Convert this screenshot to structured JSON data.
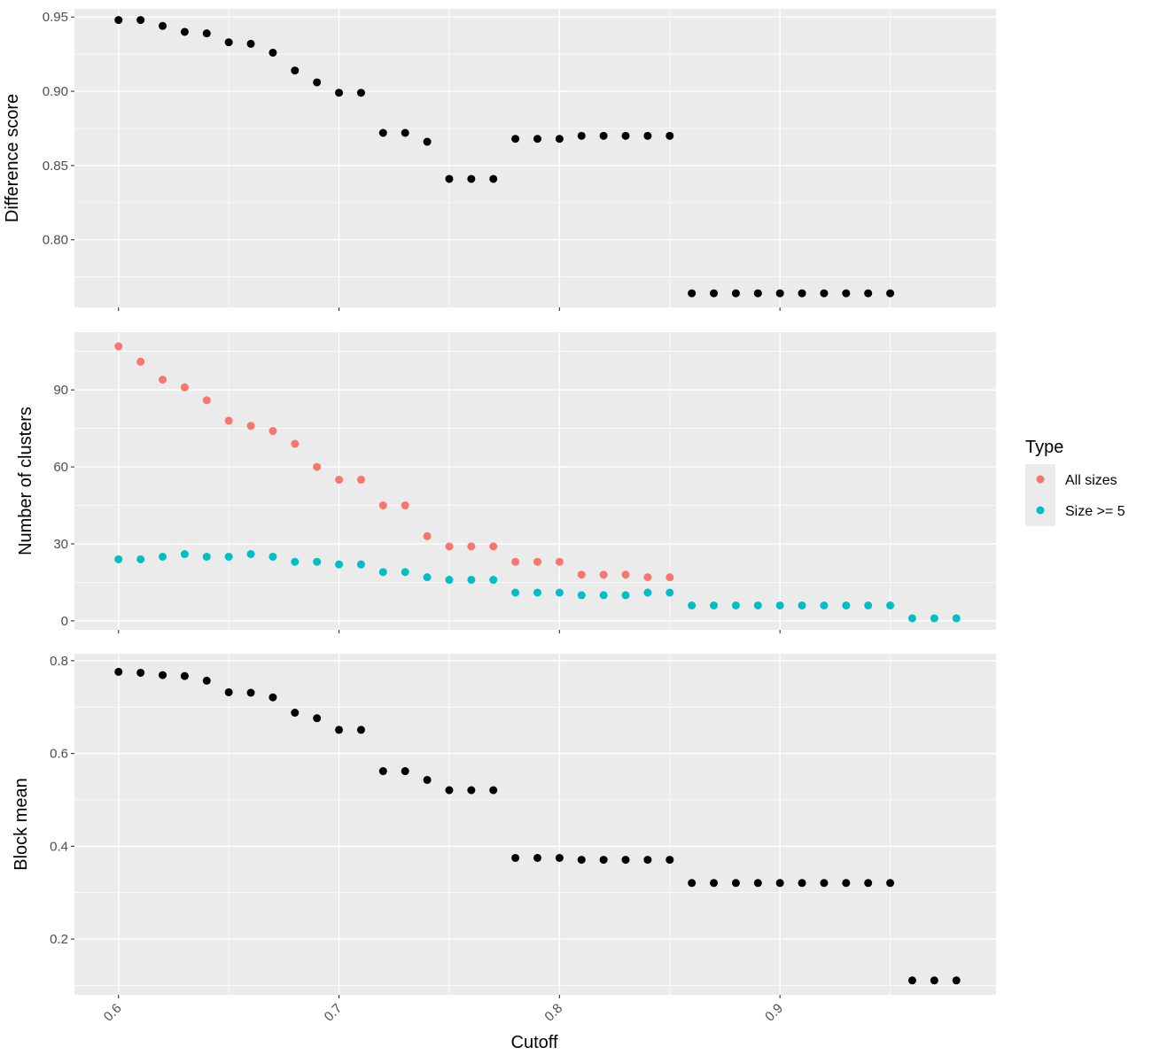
{
  "chart_data": {
    "type": "scatter",
    "xlabel": "Cutoff",
    "x_ticks": [
      "0.6",
      "0.7",
      "0.8",
      "0.9"
    ],
    "x_tick_values": [
      0.6,
      0.7,
      0.8,
      0.9
    ],
    "xlim": [
      0.58,
      0.998
    ],
    "grid": true,
    "legend": {
      "title": "Type",
      "placement": "right",
      "entries": [
        {
          "label": "All sizes",
          "color": "#F8766D"
        },
        {
          "label": "Size >= 5",
          "color": "#00BFC4"
        }
      ]
    },
    "panels": [
      {
        "ylabel": "Difference score",
        "ylim": [
          0.7545,
          0.9555
        ],
        "y_ticks": [
          "0.80",
          "0.85",
          "0.90",
          "0.95"
        ],
        "y_tick_values": [
          0.8,
          0.85,
          0.9,
          0.95
        ],
        "series": [
          {
            "color": "#000000",
            "x": [
              0.6,
              0.61,
              0.62,
              0.63,
              0.64,
              0.65,
              0.66,
              0.67,
              0.68,
              0.69,
              0.7,
              0.71,
              0.72,
              0.73,
              0.74,
              0.75,
              0.76,
              0.77,
              0.78,
              0.79,
              0.8,
              0.81,
              0.82,
              0.83,
              0.84,
              0.85,
              0.86,
              0.87,
              0.88,
              0.89,
              0.9,
              0.91,
              0.92,
              0.93,
              0.94,
              0.95
            ],
            "y": [
              0.948,
              0.948,
              0.944,
              0.94,
              0.939,
              0.933,
              0.932,
              0.926,
              0.914,
              0.906,
              0.899,
              0.899,
              0.872,
              0.872,
              0.866,
              0.841,
              0.841,
              0.841,
              0.868,
              0.868,
              0.868,
              0.87,
              0.87,
              0.87,
              0.87,
              0.87,
              0.764,
              0.764,
              0.764,
              0.764,
              0.764,
              0.764,
              0.764,
              0.764,
              0.764,
              0.764
            ]
          }
        ]
      },
      {
        "ylabel": "Number of clusters",
        "ylim": [
          -3.5,
          112.5
        ],
        "y_ticks": [
          "0",
          "30",
          "60",
          "90"
        ],
        "y_tick_values": [
          0,
          30,
          60,
          90
        ],
        "series": [
          {
            "name": "All sizes",
            "color": "#F8766D",
            "x": [
              0.6,
              0.61,
              0.62,
              0.63,
              0.64,
              0.65,
              0.66,
              0.67,
              0.68,
              0.69,
              0.7,
              0.71,
              0.72,
              0.73,
              0.74,
              0.75,
              0.76,
              0.77,
              0.78,
              0.79,
              0.8,
              0.81,
              0.82,
              0.83,
              0.84,
              0.85
            ],
            "y": [
              107,
              101,
              94,
              91,
              86,
              78,
              76,
              74,
              69,
              60,
              55,
              55,
              45,
              45,
              33,
              29,
              29,
              29,
              23,
              23,
              23,
              18,
              18,
              18,
              17,
              17
            ]
          },
          {
            "name": "Size >= 5",
            "color": "#00BFC4",
            "x": [
              0.6,
              0.61,
              0.62,
              0.63,
              0.64,
              0.65,
              0.66,
              0.67,
              0.68,
              0.69,
              0.7,
              0.71,
              0.72,
              0.73,
              0.74,
              0.75,
              0.76,
              0.77,
              0.78,
              0.79,
              0.8,
              0.81,
              0.82,
              0.83,
              0.84,
              0.85,
              0.86,
              0.87,
              0.88,
              0.89,
              0.9,
              0.91,
              0.92,
              0.93,
              0.94,
              0.95,
              0.96,
              0.97,
              0.98
            ],
            "y": [
              24,
              24,
              25,
              26,
              25,
              25,
              26,
              25,
              23,
              23,
              22,
              22,
              19,
              19,
              17,
              16,
              16,
              16,
              11,
              11,
              11,
              10,
              10,
              10,
              11,
              11,
              6,
              6,
              6,
              6,
              6,
              6,
              6,
              6,
              6,
              6,
              1,
              1,
              1
            ]
          }
        ]
      },
      {
        "ylabel": "Block mean",
        "ylim": [
          0.08,
          0.815
        ],
        "y_ticks": [
          "0.2",
          "0.4",
          "0.6",
          "0.8"
        ],
        "y_tick_values": [
          0.2,
          0.4,
          0.6,
          0.8
        ],
        "series": [
          {
            "color": "#000000",
            "x": [
              0.6,
              0.61,
              0.62,
              0.63,
              0.64,
              0.65,
              0.66,
              0.67,
              0.68,
              0.69,
              0.7,
              0.71,
              0.72,
              0.73,
              0.74,
              0.75,
              0.76,
              0.77,
              0.78,
              0.79,
              0.8,
              0.81,
              0.82,
              0.83,
              0.84,
              0.85,
              0.86,
              0.87,
              0.88,
              0.89,
              0.9,
              0.91,
              0.92,
              0.93,
              0.94,
              0.95,
              0.96,
              0.97,
              0.98
            ],
            "y": [
              0.776,
              0.774,
              0.769,
              0.767,
              0.757,
              0.732,
              0.731,
              0.721,
              0.688,
              0.676,
              0.651,
              0.651,
              0.562,
              0.562,
              0.543,
              0.521,
              0.521,
              0.521,
              0.375,
              0.375,
              0.375,
              0.371,
              0.371,
              0.371,
              0.371,
              0.371,
              0.321,
              0.321,
              0.321,
              0.321,
              0.321,
              0.321,
              0.321,
              0.321,
              0.321,
              0.321,
              0.111,
              0.111,
              0.111
            ]
          }
        ]
      }
    ]
  }
}
